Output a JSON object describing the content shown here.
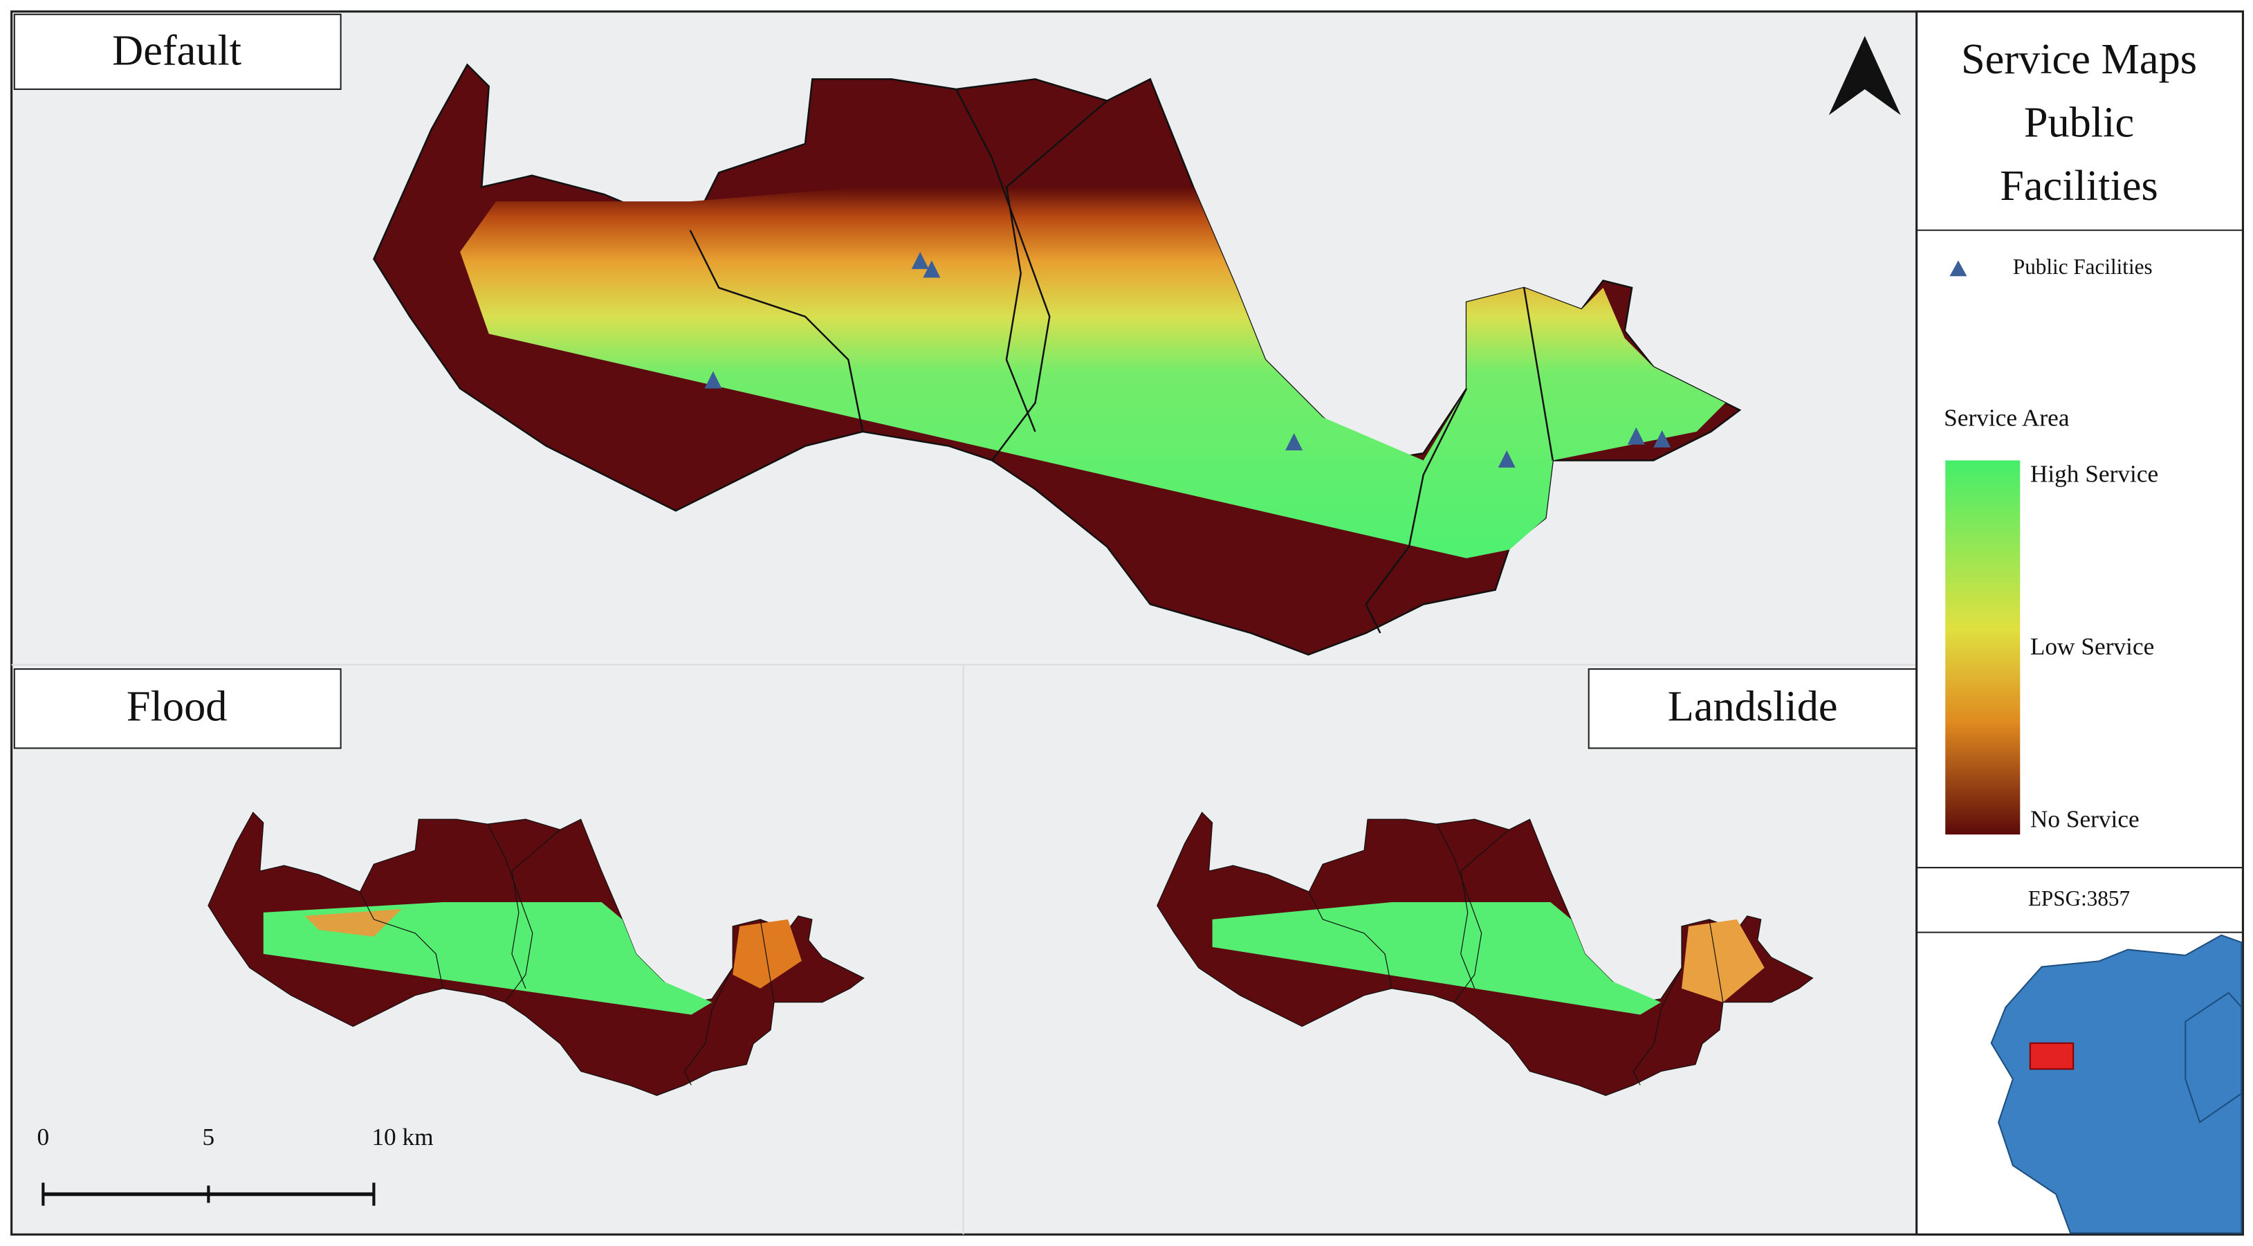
{
  "panels": {
    "default": "Default",
    "flood": "Flood",
    "landslide": "Landslide"
  },
  "legend": {
    "title": [
      "Service Maps",
      "Public",
      "Facilities"
    ],
    "point": "Public Facilities",
    "ramp_title": "Service Area",
    "high": "High Service",
    "low": "Low Service",
    "none": "No Service"
  },
  "crs": "EPSG:3857",
  "scale_bar": [
    "0",
    "5",
    "10 km"
  ]
}
